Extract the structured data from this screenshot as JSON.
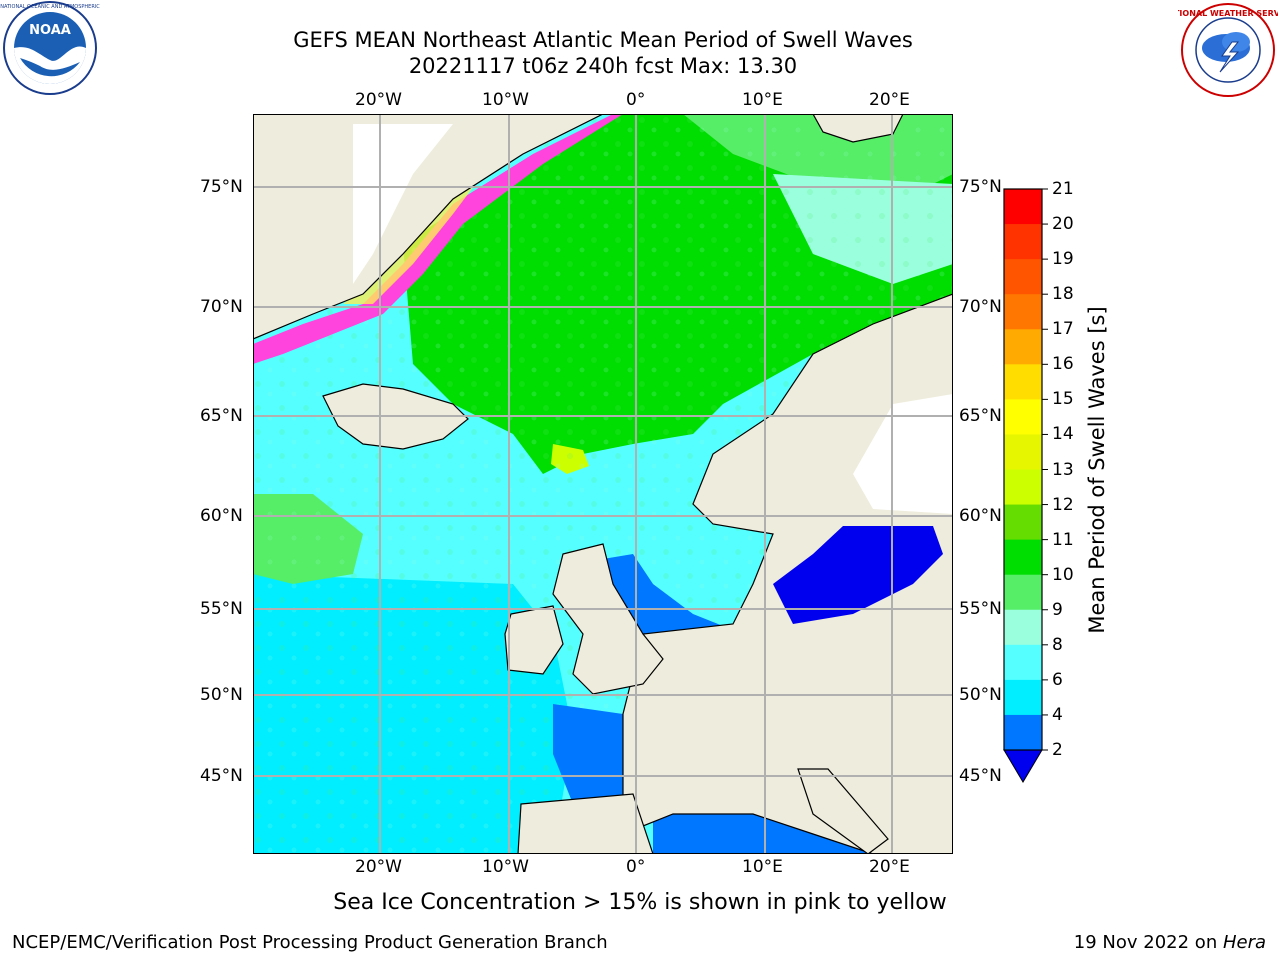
{
  "header": {
    "title_line1": "GEFS MEAN Northeast Atlantic Mean Period of Swell Waves",
    "title_line2": "20221117 t06z 240h fcst   Max: 13.30"
  },
  "logos": {
    "left": "NOAA",
    "right": "NATIONAL WEATHER SERVICE"
  },
  "map": {
    "lon_labels": [
      "20°W",
      "10°W",
      "0°",
      "10°E",
      "20°E"
    ],
    "lat_labels": [
      "75°N",
      "70°N",
      "65°N",
      "60°N",
      "55°N",
      "50°N",
      "45°N"
    ],
    "ice_note": "Sea Ice Concentration > 15% is shown in pink to yellow"
  },
  "colorbar": {
    "title": "Mean Period of Swell Waves [s]",
    "ticks": [
      "21",
      "20",
      "19",
      "18",
      "17",
      "16",
      "15",
      "14",
      "13",
      "12",
      "11",
      "10",
      "9",
      "8",
      "6",
      "4",
      "2"
    ],
    "colors": [
      "#ff0000",
      "#ff3300",
      "#ff5500",
      "#ff7700",
      "#ffaa00",
      "#ffdd00",
      "#ffff00",
      "#e6f500",
      "#ccff00",
      "#66dd00",
      "#00dd00",
      "#55ee66",
      "#99ffdd",
      "#55ffff",
      "#00eeff",
      "#0077ff"
    ],
    "extend_color": "#0000ee"
  },
  "footer": {
    "left": "NCEP/EMC/Verification Post Processing Product Generation Branch",
    "right_prefix": "19 Nov 2022 on ",
    "right_host": "Hera"
  }
}
